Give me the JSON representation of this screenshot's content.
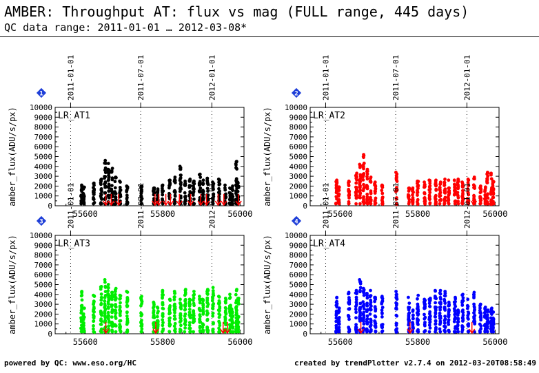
{
  "header": {
    "title": "AMBER: Throughput AT: flux vs mag (FULL range, 445 days)",
    "subtitle": "QC data range: 2011-01-01 … 2012-03-08*"
  },
  "footer": {
    "left": "powered by QC: www.eso.org/HC",
    "right": "created by trendPlotter v2.7.4 on 2012-03-20T08:58:49"
  },
  "colors": {
    "AT1": "#000000",
    "AT2": "#ff0000",
    "AT3": "#00ee00",
    "AT4": "#0000ff",
    "marker": "#ff0000",
    "badge": "#1f3fd8"
  },
  "chart_data": [
    {
      "type": "scatter",
      "panel": "1",
      "label": "LR_AT1",
      "color": "#000000",
      "ylabel": "amber_flux(ADU/s/px)",
      "xlim": [
        55522,
        56010
      ],
      "ylim": [
        0,
        10000
      ],
      "xticks": [
        55600,
        55800,
        56000
      ],
      "yticks": [
        0,
        1000,
        2000,
        3000,
        4000,
        5000,
        6000,
        7000,
        8000,
        9000,
        10000
      ],
      "date_markers": [
        {
          "mjd": 55562,
          "label": "2011-01-01"
        },
        {
          "mjd": 55743,
          "label": "2011-07-01"
        },
        {
          "mjd": 55927,
          "label": "2012-01-01"
        }
      ],
      "groups": [
        {
          "x": 55590,
          "max": 2100
        },
        {
          "x": 55596,
          "max": 1900
        },
        {
          "x": 55622,
          "max": 2300
        },
        {
          "x": 55641,
          "max": 2700
        },
        {
          "x": 55651,
          "max": 4600
        },
        {
          "x": 55660,
          "max": 4300
        },
        {
          "x": 55669,
          "max": 3800
        },
        {
          "x": 55678,
          "max": 2900
        },
        {
          "x": 55690,
          "max": 2500
        },
        {
          "x": 55708,
          "max": 2000
        },
        {
          "x": 55745,
          "max": 2000
        },
        {
          "x": 55777,
          "max": 1800
        },
        {
          "x": 55787,
          "max": 1700
        },
        {
          "x": 55800,
          "max": 2100
        },
        {
          "x": 55818,
          "max": 2600
        },
        {
          "x": 55831,
          "max": 2900
        },
        {
          "x": 55846,
          "max": 4000
        },
        {
          "x": 55858,
          "max": 2500
        },
        {
          "x": 55870,
          "max": 2700
        },
        {
          "x": 55880,
          "max": 2500
        },
        {
          "x": 55896,
          "max": 3200
        },
        {
          "x": 55904,
          "max": 2600
        },
        {
          "x": 55916,
          "max": 2800
        },
        {
          "x": 55930,
          "max": 2400
        },
        {
          "x": 55946,
          "max": 2700
        },
        {
          "x": 55962,
          "max": 2100
        },
        {
          "x": 55974,
          "max": 1800
        },
        {
          "x": 55980,
          "max": 2000
        },
        {
          "x": 55990,
          "max": 4500
        },
        {
          "x": 55995,
          "max": 2400
        }
      ],
      "markers": [
        55653,
        55667,
        55686,
        55780,
        55790,
        55808,
        55820,
        55843,
        55872,
        55898,
        55913,
        55943,
        55958,
        55996
      ]
    },
    {
      "type": "scatter",
      "panel": "2",
      "label": "LR_AT2",
      "color": "#ff0000",
      "ylabel": "amber_flux(ADU/s/px)",
      "xlim": [
        55522,
        56010
      ],
      "ylim": [
        0,
        10000
      ],
      "xticks": [
        55600,
        55800,
        56000
      ],
      "yticks": [
        0,
        1000,
        2000,
        3000,
        4000,
        5000,
        6000,
        7000,
        8000,
        9000,
        10000
      ],
      "date_markers": [
        {
          "mjd": 55562,
          "label": "2011-01-01"
        },
        {
          "mjd": 55743,
          "label": "2011-07-01"
        },
        {
          "mjd": 55927,
          "label": "2012-01-01"
        }
      ],
      "groups": [
        {
          "x": 55590,
          "max": 2600
        },
        {
          "x": 55596,
          "max": 1900
        },
        {
          "x": 55622,
          "max": 2500
        },
        {
          "x": 55641,
          "max": 3300
        },
        {
          "x": 55651,
          "max": 4200
        },
        {
          "x": 55660,
          "max": 5200
        },
        {
          "x": 55669,
          "max": 3700
        },
        {
          "x": 55678,
          "max": 2900
        },
        {
          "x": 55690,
          "max": 2400
        },
        {
          "x": 55708,
          "max": 2100
        },
        {
          "x": 55745,
          "max": 3400
        },
        {
          "x": 55777,
          "max": 1800
        },
        {
          "x": 55787,
          "max": 1800
        },
        {
          "x": 55800,
          "max": 2500
        },
        {
          "x": 55818,
          "max": 2400
        },
        {
          "x": 55831,
          "max": 2600
        },
        {
          "x": 55846,
          "max": 2600
        },
        {
          "x": 55858,
          "max": 2400
        },
        {
          "x": 55870,
          "max": 2700
        },
        {
          "x": 55880,
          "max": 2600
        },
        {
          "x": 55896,
          "max": 2600
        },
        {
          "x": 55904,
          "max": 2700
        },
        {
          "x": 55916,
          "max": 2400
        },
        {
          "x": 55930,
          "max": 2700
        },
        {
          "x": 55946,
          "max": 2900
        },
        {
          "x": 55962,
          "max": 2000
        },
        {
          "x": 55974,
          "max": 1900
        },
        {
          "x": 55980,
          "max": 3400
        },
        {
          "x": 55990,
          "max": 3300
        },
        {
          "x": 55995,
          "max": 2500
        }
      ],
      "markers": [
        55945
      ]
    },
    {
      "type": "scatter",
      "panel": "3",
      "label": "LR_AT3",
      "color": "#00ee00",
      "ylabel": "amber_flux(ADU/s/px)",
      "xlim": [
        55522,
        56010
      ],
      "ylim": [
        0,
        10000
      ],
      "xticks": [
        55600,
        55800,
        56000
      ],
      "yticks": [
        0,
        1000,
        2000,
        3000,
        4000,
        5000,
        6000,
        7000,
        8000,
        9000,
        10000
      ],
      "date_markers": [
        {
          "mjd": 55562,
          "label": "2011-01-01"
        },
        {
          "mjd": 55743,
          "label": "2011-07-01"
        },
        {
          "mjd": 55927,
          "label": "2012-01-01"
        }
      ],
      "groups": [
        {
          "x": 55590,
          "max": 4300
        },
        {
          "x": 55596,
          "max": 2600
        },
        {
          "x": 55622,
          "max": 3900
        },
        {
          "x": 55641,
          "max": 4800
        },
        {
          "x": 55651,
          "max": 5500
        },
        {
          "x": 55660,
          "max": 5000
        },
        {
          "x": 55669,
          "max": 4200
        },
        {
          "x": 55678,
          "max": 4600
        },
        {
          "x": 55690,
          "max": 3900
        },
        {
          "x": 55708,
          "max": 4300
        },
        {
          "x": 55745,
          "max": 3800
        },
        {
          "x": 55777,
          "max": 3200
        },
        {
          "x": 55787,
          "max": 2700
        },
        {
          "x": 55800,
          "max": 4400
        },
        {
          "x": 55818,
          "max": 3500
        },
        {
          "x": 55831,
          "max": 4300
        },
        {
          "x": 55846,
          "max": 3500
        },
        {
          "x": 55858,
          "max": 4500
        },
        {
          "x": 55870,
          "max": 3500
        },
        {
          "x": 55880,
          "max": 4300
        },
        {
          "x": 55896,
          "max": 3800
        },
        {
          "x": 55904,
          "max": 3500
        },
        {
          "x": 55916,
          "max": 4500
        },
        {
          "x": 55930,
          "max": 4700
        },
        {
          "x": 55946,
          "max": 3800
        },
        {
          "x": 55962,
          "max": 3600
        },
        {
          "x": 55974,
          "max": 4000
        },
        {
          "x": 55980,
          "max": 2500
        },
        {
          "x": 55990,
          "max": 4500
        },
        {
          "x": 55995,
          "max": 3600
        }
      ],
      "markers": [
        55653,
        55782,
        55956,
        55967
      ]
    },
    {
      "type": "scatter",
      "panel": "4",
      "label": "LR_AT4",
      "color": "#0000ff",
      "ylabel": "amber_flux(ADU/s/px)",
      "xlim": [
        55522,
        56010
      ],
      "ylim": [
        0,
        10000
      ],
      "xticks": [
        55600,
        55800,
        56000
      ],
      "yticks": [
        0,
        1000,
        2000,
        3000,
        4000,
        5000,
        6000,
        7000,
        8000,
        9000,
        10000
      ],
      "date_markers": [
        {
          "mjd": 55562,
          "label": "2011-01-01"
        },
        {
          "mjd": 55743,
          "label": "2011-07-01"
        },
        {
          "mjd": 55927,
          "label": "2012-01-01"
        }
      ],
      "groups": [
        {
          "x": 55590,
          "max": 3700
        },
        {
          "x": 55596,
          "max": 2600
        },
        {
          "x": 55622,
          "max": 4200
        },
        {
          "x": 55641,
          "max": 4400
        },
        {
          "x": 55651,
          "max": 5500
        },
        {
          "x": 55660,
          "max": 4600
        },
        {
          "x": 55669,
          "max": 4100
        },
        {
          "x": 55678,
          "max": 4400
        },
        {
          "x": 55690,
          "max": 3700
        },
        {
          "x": 55708,
          "max": 3800
        },
        {
          "x": 55745,
          "max": 4300
        },
        {
          "x": 55777,
          "max": 3700
        },
        {
          "x": 55787,
          "max": 2400
        },
        {
          "x": 55800,
          "max": 3900
        },
        {
          "x": 55818,
          "max": 3500
        },
        {
          "x": 55831,
          "max": 3600
        },
        {
          "x": 55846,
          "max": 4400
        },
        {
          "x": 55858,
          "max": 4400
        },
        {
          "x": 55870,
          "max": 4300
        },
        {
          "x": 55880,
          "max": 3200
        },
        {
          "x": 55896,
          "max": 3700
        },
        {
          "x": 55904,
          "max": 2400
        },
        {
          "x": 55916,
          "max": 4000
        },
        {
          "x": 55930,
          "max": 3500
        },
        {
          "x": 55946,
          "max": 4200
        },
        {
          "x": 55962,
          "max": 3000
        },
        {
          "x": 55974,
          "max": 2700
        },
        {
          "x": 55980,
          "max": 2400
        },
        {
          "x": 55990,
          "max": 2600
        },
        {
          "x": 55995,
          "max": 2200
        }
      ],
      "markers": [
        55653,
        55780,
        55940
      ]
    }
  ]
}
